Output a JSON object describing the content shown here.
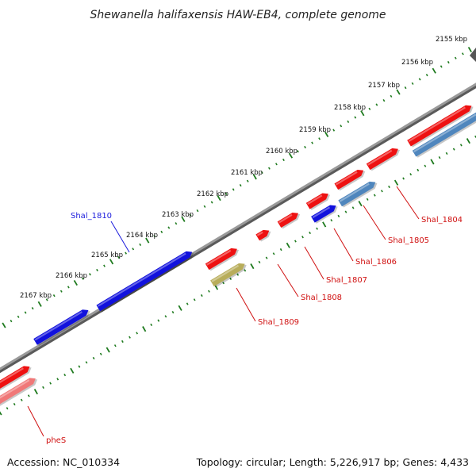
{
  "title": "Shewanella halifaxensis HAW-EB4, complete genome",
  "footer": {
    "accession": "Accession: NC_010334",
    "summary": "Topology: circular; Length: 5,226,917 bp; Genes: 4,433"
  },
  "ruler_labels": [
    "2155 kbp",
    "2156 kbp",
    "2157 kbp",
    "2158 kbp",
    "2159 kbp",
    "2160 kbp",
    "2161 kbp",
    "2162 kbp",
    "2163 kbp",
    "2164 kbp",
    "2165 kbp",
    "2166 kbp",
    "2167 kbp"
  ],
  "gene_labels": [
    {
      "name": "Shal_1810",
      "color": "#1a1adc"
    },
    {
      "name": "Shal_1804",
      "color": "#d01010"
    },
    {
      "name": "Shal_1805",
      "color": "#d01010"
    },
    {
      "name": "Shal_1806",
      "color": "#d01010"
    },
    {
      "name": "Shal_1807",
      "color": "#d01010"
    },
    {
      "name": "Shal_1808",
      "color": "#d01010"
    },
    {
      "name": "Shal_1809",
      "color": "#d01010"
    },
    {
      "name": "pheS",
      "color": "#d01010"
    }
  ],
  "colors": {
    "red_gene": "#ee1111",
    "blue_gene": "#1111dd",
    "steel_gene": "#4f86bd",
    "olive_gene": "#b8ad5a",
    "pink_gene": "#f07878",
    "backbone": "#7a7a7a",
    "ruler": "#1e7a1e"
  }
}
